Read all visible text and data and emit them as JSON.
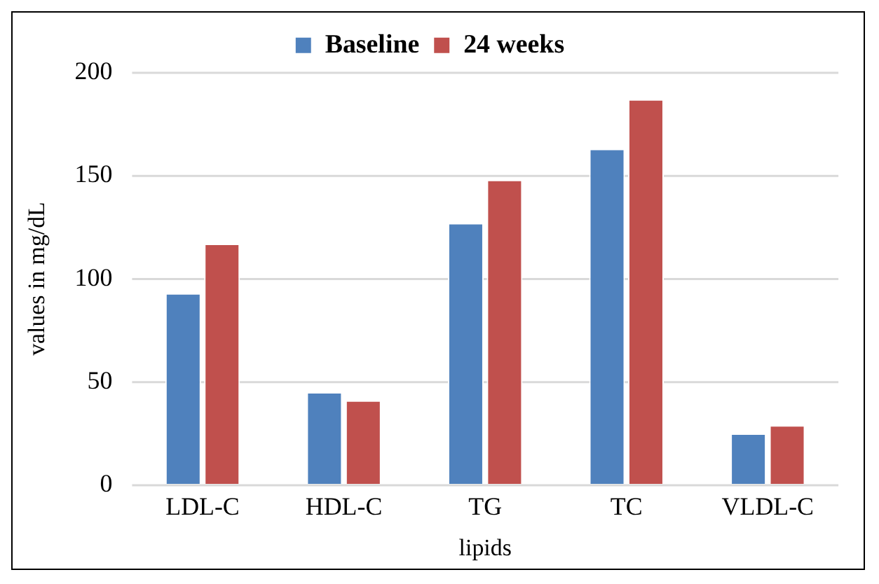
{
  "chart_data": {
    "type": "bar",
    "xlabel": "lipids",
    "ylabel": "values in mg/dL",
    "categories": [
      "LDL-C",
      "HDL-C",
      "TG",
      "TC",
      "VLDL-C"
    ],
    "series": [
      {
        "name": "Baseline",
        "color": "#4f81bd",
        "values": [
          93,
          45,
          127,
          163,
          25
        ]
      },
      {
        "name": "24 weeks",
        "color": "#c0504d",
        "values": [
          117,
          41,
          148,
          187,
          29
        ]
      }
    ],
    "ylim": [
      0,
      200
    ],
    "yticks": [
      0,
      50,
      100,
      150,
      200
    ],
    "grid": "y",
    "legend": "top"
  }
}
